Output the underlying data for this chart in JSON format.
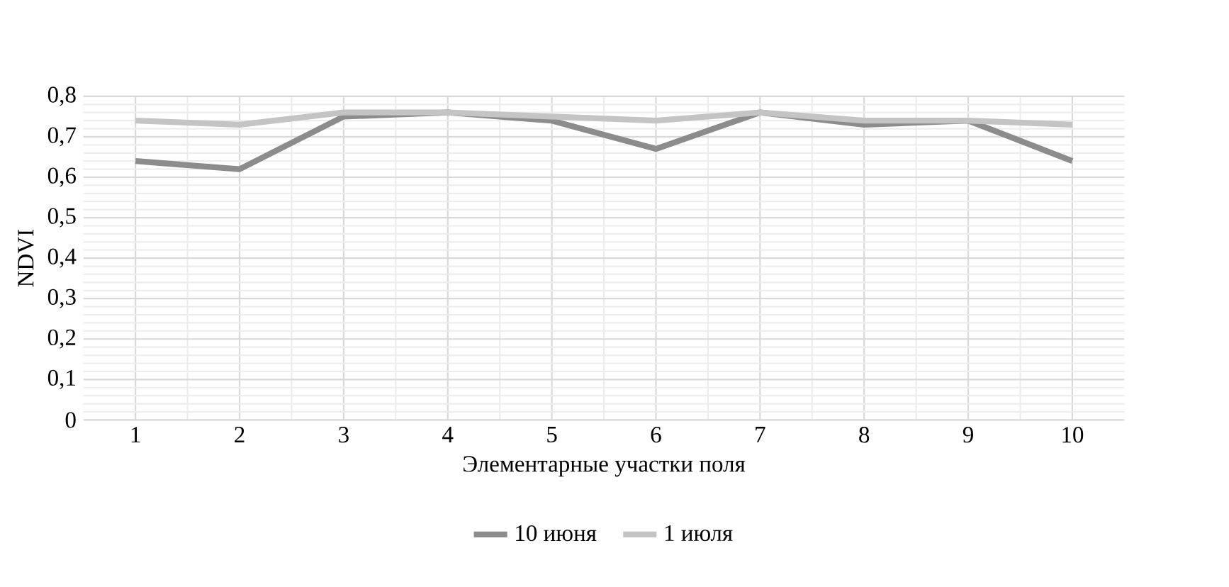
{
  "chart_data": {
    "type": "line",
    "xlabel": "Элементарные участки поля",
    "ylabel": "NDVI",
    "categories": [
      "1",
      "2",
      "3",
      "4",
      "5",
      "6",
      "7",
      "8",
      "9",
      "10"
    ],
    "series": [
      {
        "name": "10 июня",
        "color": "#8c8c8c",
        "values": [
          0.64,
          0.62,
          0.75,
          0.76,
          0.74,
          0.67,
          0.76,
          0.73,
          0.74,
          0.64
        ]
      },
      {
        "name": "1 июля",
        "color": "#c4c4c4",
        "values": [
          0.74,
          0.73,
          0.76,
          0.76,
          0.75,
          0.74,
          0.76,
          0.74,
          0.74,
          0.73
        ]
      }
    ],
    "ylim": [
      0,
      0.8
    ],
    "yticks": [
      0,
      {
        "value": 0.1,
        "label": "0,1"
      },
      {
        "value": 0.2,
        "label": "0,2"
      },
      {
        "value": 0.3,
        "label": "0,3"
      },
      {
        "value": 0.4,
        "label": "0,4"
      },
      {
        "value": 0.5,
        "label": "0,5"
      },
      {
        "value": 0.6,
        "label": "0,6"
      },
      {
        "value": 0.7,
        "label": "0,7"
      },
      {
        "value": 0.8,
        "label": "0,8"
      }
    ],
    "grid": true,
    "legend": "bottom",
    "marker": "none",
    "line_style": "solid"
  }
}
